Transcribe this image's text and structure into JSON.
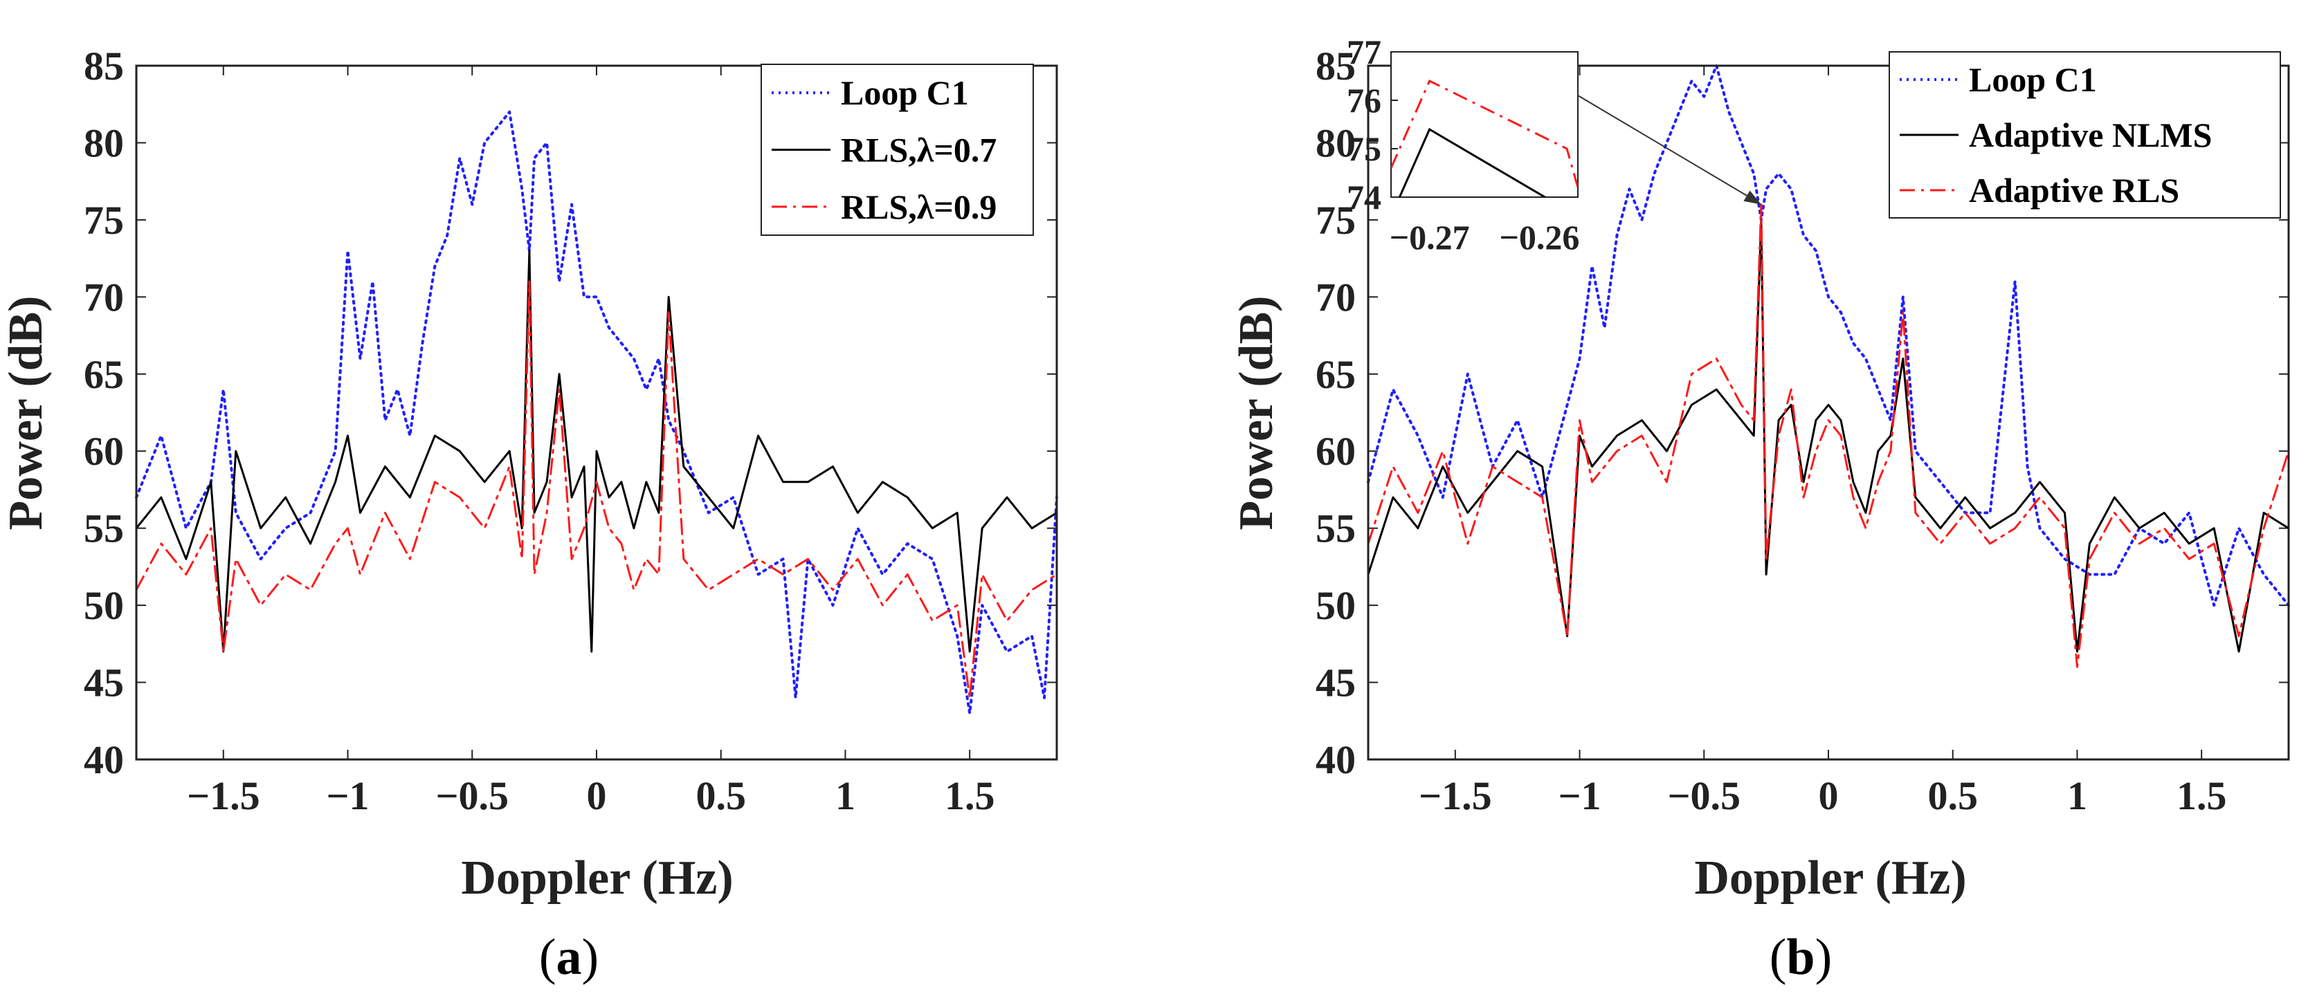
{
  "figure": {
    "panels": [
      {
        "caption_open": "(",
        "caption_letter": "a",
        "caption_close": ")"
      },
      {
        "caption_open": "(",
        "caption_letter": "b",
        "caption_close": ")"
      }
    ]
  },
  "chart_data": [
    {
      "type": "line",
      "panel": "a",
      "title": "",
      "xlabel": "Doppler (Hz)",
      "ylabel": "Power (dB)",
      "xlim": [
        -1.85,
        1.85
      ],
      "ylim": [
        40,
        85
      ],
      "xticks": [
        -1.5,
        -1,
        -0.5,
        0,
        0.5,
        1,
        1.5
      ],
      "xtick_labels": [
        "−1.5",
        "−1",
        "−0.5",
        "0",
        "0.5",
        "1",
        "1.5"
      ],
      "yticks": [
        40,
        45,
        50,
        55,
        60,
        65,
        70,
        75,
        80,
        85
      ],
      "ytick_labels": [
        "40",
        "45",
        "50",
        "55",
        "60",
        "65",
        "70",
        "75",
        "80",
        "85"
      ],
      "legend_position": "top-right",
      "series": [
        {
          "name": "Loop C1",
          "color": "#1f1fff",
          "style": "dotted",
          "x": [
            -1.85,
            -1.75,
            -1.65,
            -1.55,
            -1.5,
            -1.45,
            -1.35,
            -1.25,
            -1.15,
            -1.05,
            -1.0,
            -0.95,
            -0.9,
            -0.85,
            -0.8,
            -0.75,
            -0.7,
            -0.65,
            -0.6,
            -0.55,
            -0.5,
            -0.45,
            -0.4,
            -0.35,
            -0.3,
            -0.27,
            -0.25,
            -0.2,
            -0.15,
            -0.1,
            -0.05,
            0.0,
            0.05,
            0.1,
            0.15,
            0.2,
            0.25,
            0.29,
            0.35,
            0.45,
            0.55,
            0.65,
            0.75,
            0.8,
            0.85,
            0.95,
            1.05,
            1.15,
            1.25,
            1.35,
            1.45,
            1.5,
            1.55,
            1.65,
            1.75,
            1.8,
            1.85
          ],
          "y": [
            57,
            61,
            55,
            58,
            64,
            56,
            53,
            55,
            56,
            60,
            73,
            66,
            71,
            62,
            64,
            61,
            67,
            72,
            74,
            79,
            76,
            80,
            81,
            82,
            77,
            73,
            79,
            80,
            71,
            76,
            70,
            70,
            68,
            67,
            66,
            64,
            66,
            62,
            60,
            56,
            57,
            52,
            53,
            44,
            53,
            50,
            55,
            52,
            54,
            53,
            48,
            43,
            50,
            47,
            48,
            44,
            57
          ]
        },
        {
          "name": "RLS,λ=0.7",
          "color": "#000000",
          "style": "solid",
          "x": [
            -1.85,
            -1.75,
            -1.65,
            -1.55,
            -1.5,
            -1.45,
            -1.35,
            -1.25,
            -1.15,
            -1.05,
            -1.0,
            -0.95,
            -0.85,
            -0.75,
            -0.65,
            -0.55,
            -0.45,
            -0.35,
            -0.3,
            -0.27,
            -0.25,
            -0.2,
            -0.15,
            -0.1,
            -0.05,
            -0.02,
            0.0,
            0.05,
            0.1,
            0.15,
            0.2,
            0.25,
            0.29,
            0.35,
            0.45,
            0.55,
            0.65,
            0.75,
            0.85,
            0.95,
            1.05,
            1.15,
            1.25,
            1.35,
            1.45,
            1.5,
            1.55,
            1.65,
            1.75,
            1.85
          ],
          "y": [
            55,
            57,
            53,
            58,
            47,
            60,
            55,
            57,
            54,
            58,
            61,
            56,
            59,
            57,
            61,
            60,
            58,
            60,
            55,
            73,
            56,
            58,
            65,
            57,
            59,
            47,
            60,
            57,
            58,
            55,
            58,
            56,
            70,
            59,
            57,
            55,
            61,
            58,
            58,
            59,
            56,
            58,
            57,
            55,
            56,
            47,
            55,
            57,
            55,
            56
          ]
        },
        {
          "name": "RLS,λ=0.9",
          "color": "#ff1a1a",
          "style": "dashdot",
          "x": [
            -1.85,
            -1.75,
            -1.65,
            -1.55,
            -1.5,
            -1.45,
            -1.35,
            -1.25,
            -1.15,
            -1.05,
            -1.0,
            -0.95,
            -0.85,
            -0.75,
            -0.65,
            -0.55,
            -0.45,
            -0.35,
            -0.3,
            -0.27,
            -0.25,
            -0.2,
            -0.15,
            -0.1,
            -0.05,
            0.0,
            0.05,
            0.1,
            0.15,
            0.2,
            0.25,
            0.29,
            0.35,
            0.45,
            0.55,
            0.65,
            0.75,
            0.85,
            0.95,
            1.05,
            1.15,
            1.25,
            1.35,
            1.45,
            1.5,
            1.55,
            1.65,
            1.75,
            1.85
          ],
          "y": [
            51,
            54,
            52,
            55,
            47,
            53,
            50,
            52,
            51,
            54,
            55,
            52,
            56,
            53,
            58,
            57,
            55,
            59,
            53,
            71,
            52,
            56,
            64,
            53,
            55,
            58,
            55,
            54,
            51,
            53,
            52,
            69,
            53,
            51,
            52,
            53,
            52,
            53,
            51,
            53,
            50,
            52,
            49,
            50,
            44,
            52,
            49,
            51,
            52
          ]
        }
      ]
    },
    {
      "type": "line",
      "panel": "b",
      "title": "",
      "xlabel": "Doppler (Hz)",
      "ylabel": "Power (dB)",
      "xlim": [
        -1.85,
        1.85
      ],
      "ylim": [
        40,
        85
      ],
      "xticks": [
        -1.5,
        -1,
        -0.5,
        0,
        0.5,
        1,
        1.5
      ],
      "xtick_labels": [
        "−1.5",
        "−1",
        "−0.5",
        "0",
        "0.5",
        "1",
        "1.5"
      ],
      "yticks": [
        40,
        45,
        50,
        55,
        60,
        65,
        70,
        75,
        80,
        85
      ],
      "ytick_labels": [
        "40",
        "45",
        "50",
        "55",
        "60",
        "65",
        "70",
        "75",
        "80",
        "85"
      ],
      "legend_position": "top-right",
      "series": [
        {
          "name": "Loop C1",
          "color": "#1f1fff",
          "style": "dotted",
          "x": [
            -1.85,
            -1.75,
            -1.65,
            -1.55,
            -1.45,
            -1.35,
            -1.25,
            -1.15,
            -1.05,
            -1.0,
            -0.95,
            -0.9,
            -0.85,
            -0.8,
            -0.75,
            -0.7,
            -0.65,
            -0.6,
            -0.55,
            -0.5,
            -0.45,
            -0.4,
            -0.35,
            -0.3,
            -0.27,
            -0.25,
            -0.2,
            -0.15,
            -0.1,
            -0.05,
            0.0,
            0.05,
            0.1,
            0.15,
            0.2,
            0.25,
            0.3,
            0.35,
            0.45,
            0.55,
            0.65,
            0.75,
            0.8,
            0.85,
            0.95,
            1.05,
            1.15,
            1.25,
            1.35,
            1.45,
            1.55,
            1.65,
            1.75,
            1.85
          ],
          "y": [
            58,
            64,
            61,
            57,
            65,
            59,
            62,
            57,
            63,
            66,
            72,
            68,
            74,
            77,
            75,
            78,
            80,
            82,
            84,
            83,
            85,
            82,
            80,
            78,
            75,
            77,
            78,
            77,
            74,
            73,
            70,
            69,
            67,
            66,
            64,
            62,
            70,
            60,
            58,
            56,
            56,
            71,
            59,
            55,
            53,
            52,
            52,
            55,
            54,
            56,
            50,
            55,
            52,
            50
          ]
        },
        {
          "name": "Adaptive NLMS",
          "color": "#000000",
          "style": "solid",
          "x": [
            -1.85,
            -1.75,
            -1.65,
            -1.55,
            -1.45,
            -1.35,
            -1.25,
            -1.15,
            -1.05,
            -1.0,
            -0.95,
            -0.85,
            -0.75,
            -0.65,
            -0.55,
            -0.45,
            -0.35,
            -0.3,
            -0.27,
            -0.25,
            -0.2,
            -0.15,
            -0.1,
            -0.05,
            0.0,
            0.05,
            0.1,
            0.15,
            0.2,
            0.25,
            0.3,
            0.35,
            0.45,
            0.55,
            0.65,
            0.75,
            0.85,
            0.95,
            1.0,
            1.05,
            1.15,
            1.25,
            1.35,
            1.45,
            1.55,
            1.65,
            1.75,
            1.85
          ],
          "y": [
            52,
            57,
            55,
            59,
            56,
            58,
            60,
            59,
            48,
            61,
            59,
            61,
            62,
            60,
            63,
            64,
            62,
            61,
            75,
            52,
            62,
            63,
            58,
            62,
            63,
            62,
            58,
            56,
            60,
            61,
            66,
            57,
            55,
            57,
            55,
            56,
            58,
            56,
            47,
            54,
            57,
            55,
            56,
            54,
            55,
            47,
            56,
            55
          ]
        },
        {
          "name": "Adaptive RLS",
          "color": "#ff1a1a",
          "style": "dashdot",
          "x": [
            -1.85,
            -1.75,
            -1.65,
            -1.55,
            -1.45,
            -1.35,
            -1.25,
            -1.15,
            -1.05,
            -1.0,
            -0.95,
            -0.85,
            -0.75,
            -0.65,
            -0.55,
            -0.45,
            -0.35,
            -0.3,
            -0.27,
            -0.25,
            -0.2,
            -0.15,
            -0.1,
            -0.05,
            0.0,
            0.05,
            0.1,
            0.15,
            0.2,
            0.25,
            0.3,
            0.35,
            0.45,
            0.55,
            0.65,
            0.75,
            0.85,
            0.95,
            1.0,
            1.05,
            1.15,
            1.25,
            1.35,
            1.45,
            1.55,
            1.65,
            1.75,
            1.85
          ],
          "y": [
            54,
            59,
            56,
            60,
            54,
            59,
            58,
            57,
            48,
            62,
            58,
            60,
            61,
            58,
            65,
            66,
            63,
            62,
            76,
            53,
            61,
            64,
            57,
            60,
            62,
            61,
            57,
            55,
            58,
            60,
            69,
            56,
            54,
            56,
            54,
            55,
            57,
            55,
            46,
            53,
            56,
            54,
            55,
            53,
            54,
            48,
            55,
            60
          ]
        }
      ],
      "inset": {
        "xlim": [
          -0.2735,
          -0.2565
        ],
        "ylim": [
          74,
          77
        ],
        "xticks": [
          -0.27,
          -0.26
        ],
        "xtick_labels": [
          "−0.27",
          "−0.26"
        ],
        "yticks": [
          74,
          75,
          76,
          77
        ],
        "ytick_labels": [
          "74",
          "75",
          "76",
          "77"
        ],
        "points_to": {
          "x": -0.27,
          "y": 76
        },
        "series": [
          {
            "name": "Adaptive NLMS",
            "color": "#000000",
            "style": "solid",
            "x": [
              -0.2735,
              -0.27,
              -0.258
            ],
            "y": [
              73.6,
              75.4,
              73.8
            ]
          },
          {
            "name": "Adaptive RLS",
            "color": "#ff1a1a",
            "style": "dashdot",
            "x": [
              -0.2735,
              -0.27,
              -0.2575,
              -0.2565
            ],
            "y": [
              74.6,
              76.4,
              75.0,
              74.2
            ]
          }
        ]
      }
    }
  ]
}
